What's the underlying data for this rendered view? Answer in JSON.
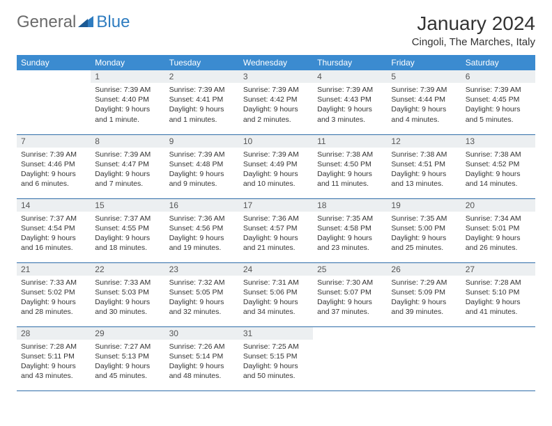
{
  "branding": {
    "word1": "General",
    "word2": "Blue",
    "icon_name": "triangle-logo-icon",
    "color_general": "#6a6a6a",
    "color_blue": "#2e7cc0"
  },
  "header": {
    "title": "January 2024",
    "location": "Cingoli, The Marches, Italy"
  },
  "style": {
    "header_bg": "#3b8bd0",
    "header_fg": "#ffffff",
    "daynum_bg": "#eceff1",
    "row_border": "#2e6ca8",
    "title_fontsize": 28,
    "location_fontsize": 15,
    "th_fontsize": 12,
    "cell_fontsize": 10.5
  },
  "calendar": {
    "weekdays": [
      "Sunday",
      "Monday",
      "Tuesday",
      "Wednesday",
      "Thursday",
      "Friday",
      "Saturday"
    ],
    "start_offset": 1,
    "days": [
      {
        "n": "1",
        "sunrise": "7:39 AM",
        "sunset": "4:40 PM",
        "daylight": "9 hours and 1 minute."
      },
      {
        "n": "2",
        "sunrise": "7:39 AM",
        "sunset": "4:41 PM",
        "daylight": "9 hours and 1 minutes."
      },
      {
        "n": "3",
        "sunrise": "7:39 AM",
        "sunset": "4:42 PM",
        "daylight": "9 hours and 2 minutes."
      },
      {
        "n": "4",
        "sunrise": "7:39 AM",
        "sunset": "4:43 PM",
        "daylight": "9 hours and 3 minutes."
      },
      {
        "n": "5",
        "sunrise": "7:39 AM",
        "sunset": "4:44 PM",
        "daylight": "9 hours and 4 minutes."
      },
      {
        "n": "6",
        "sunrise": "7:39 AM",
        "sunset": "4:45 PM",
        "daylight": "9 hours and 5 minutes."
      },
      {
        "n": "7",
        "sunrise": "7:39 AM",
        "sunset": "4:46 PM",
        "daylight": "9 hours and 6 minutes."
      },
      {
        "n": "8",
        "sunrise": "7:39 AM",
        "sunset": "4:47 PM",
        "daylight": "9 hours and 7 minutes."
      },
      {
        "n": "9",
        "sunrise": "7:39 AM",
        "sunset": "4:48 PM",
        "daylight": "9 hours and 9 minutes."
      },
      {
        "n": "10",
        "sunrise": "7:39 AM",
        "sunset": "4:49 PM",
        "daylight": "9 hours and 10 minutes."
      },
      {
        "n": "11",
        "sunrise": "7:38 AM",
        "sunset": "4:50 PM",
        "daylight": "9 hours and 11 minutes."
      },
      {
        "n": "12",
        "sunrise": "7:38 AM",
        "sunset": "4:51 PM",
        "daylight": "9 hours and 13 minutes."
      },
      {
        "n": "13",
        "sunrise": "7:38 AM",
        "sunset": "4:52 PM",
        "daylight": "9 hours and 14 minutes."
      },
      {
        "n": "14",
        "sunrise": "7:37 AM",
        "sunset": "4:54 PM",
        "daylight": "9 hours and 16 minutes."
      },
      {
        "n": "15",
        "sunrise": "7:37 AM",
        "sunset": "4:55 PM",
        "daylight": "9 hours and 18 minutes."
      },
      {
        "n": "16",
        "sunrise": "7:36 AM",
        "sunset": "4:56 PM",
        "daylight": "9 hours and 19 minutes."
      },
      {
        "n": "17",
        "sunrise": "7:36 AM",
        "sunset": "4:57 PM",
        "daylight": "9 hours and 21 minutes."
      },
      {
        "n": "18",
        "sunrise": "7:35 AM",
        "sunset": "4:58 PM",
        "daylight": "9 hours and 23 minutes."
      },
      {
        "n": "19",
        "sunrise": "7:35 AM",
        "sunset": "5:00 PM",
        "daylight": "9 hours and 25 minutes."
      },
      {
        "n": "20",
        "sunrise": "7:34 AM",
        "sunset": "5:01 PM",
        "daylight": "9 hours and 26 minutes."
      },
      {
        "n": "21",
        "sunrise": "7:33 AM",
        "sunset": "5:02 PM",
        "daylight": "9 hours and 28 minutes."
      },
      {
        "n": "22",
        "sunrise": "7:33 AM",
        "sunset": "5:03 PM",
        "daylight": "9 hours and 30 minutes."
      },
      {
        "n": "23",
        "sunrise": "7:32 AM",
        "sunset": "5:05 PM",
        "daylight": "9 hours and 32 minutes."
      },
      {
        "n": "24",
        "sunrise": "7:31 AM",
        "sunset": "5:06 PM",
        "daylight": "9 hours and 34 minutes."
      },
      {
        "n": "25",
        "sunrise": "7:30 AM",
        "sunset": "5:07 PM",
        "daylight": "9 hours and 37 minutes."
      },
      {
        "n": "26",
        "sunrise": "7:29 AM",
        "sunset": "5:09 PM",
        "daylight": "9 hours and 39 minutes."
      },
      {
        "n": "27",
        "sunrise": "7:28 AM",
        "sunset": "5:10 PM",
        "daylight": "9 hours and 41 minutes."
      },
      {
        "n": "28",
        "sunrise": "7:28 AM",
        "sunset": "5:11 PM",
        "daylight": "9 hours and 43 minutes."
      },
      {
        "n": "29",
        "sunrise": "7:27 AM",
        "sunset": "5:13 PM",
        "daylight": "9 hours and 45 minutes."
      },
      {
        "n": "30",
        "sunrise": "7:26 AM",
        "sunset": "5:14 PM",
        "daylight": "9 hours and 48 minutes."
      },
      {
        "n": "31",
        "sunrise": "7:25 AM",
        "sunset": "5:15 PM",
        "daylight": "9 hours and 50 minutes."
      }
    ],
    "labels": {
      "sunrise": "Sunrise:",
      "sunset": "Sunset:",
      "daylight": "Daylight:"
    }
  }
}
